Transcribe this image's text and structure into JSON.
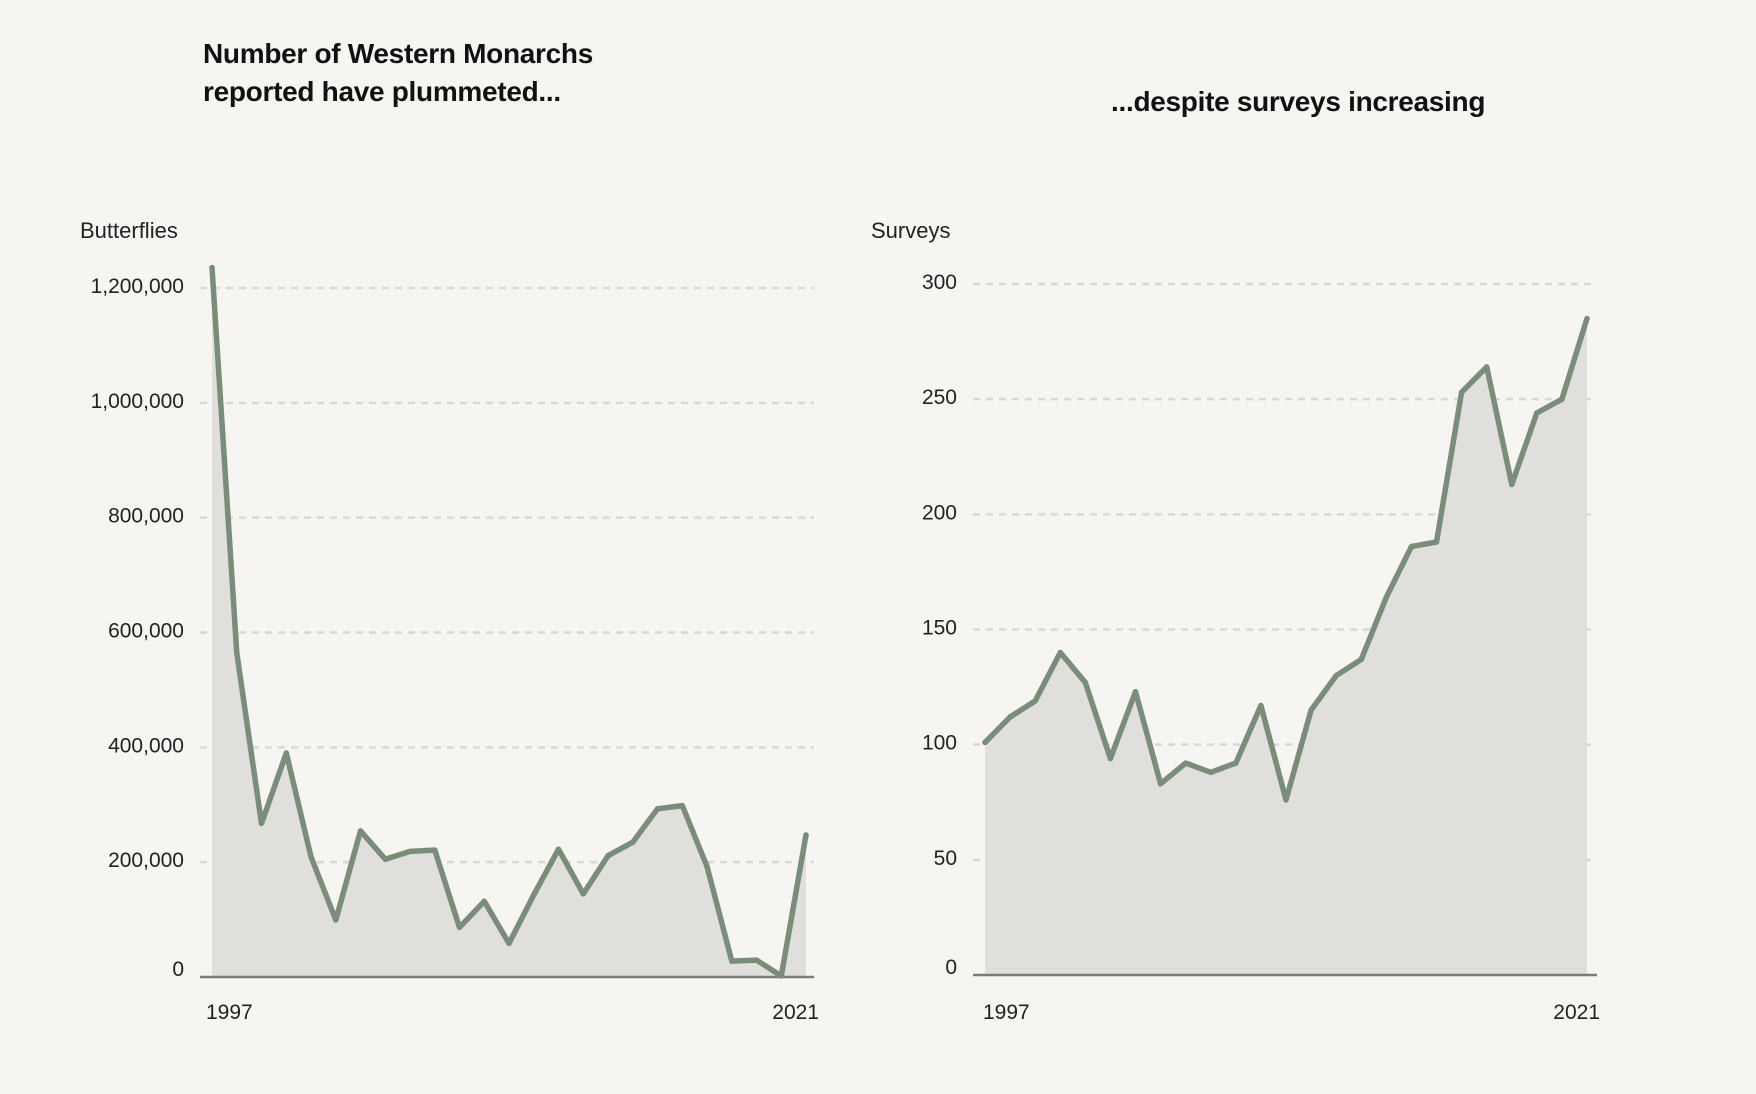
{
  "chart_data": [
    {
      "type": "area",
      "title": "Number of Western Monarchs reported have plummeted...",
      "title_lines": [
        "Number of Western Monarchs",
        "reported have plummeted..."
      ],
      "xlabel": "",
      "ylabel": "Butterflies",
      "x": [
        1997,
        1998,
        1999,
        2000,
        2001,
        2002,
        2003,
        2004,
        2005,
        2006,
        2007,
        2008,
        2009,
        2010,
        2011,
        2012,
        2013,
        2014,
        2015,
        2016,
        2017,
        2018,
        2019,
        2020,
        2021
      ],
      "x_tick_labels": [
        "1997",
        "2021"
      ],
      "series": [
        {
          "name": "Butterflies",
          "color": "#7a8c7a",
          "fill": "#e0dfdb",
          "values": [
            1235490,
            564349,
            267574,
            390057,
            209570,
            99353,
            254378,
            205085,
            218679,
            221058,
            86437,
            131889,
            58468,
            143204,
            222525,
            144812,
            211275,
            234731,
            292888,
            298464,
            192624,
            27721,
            29418,
            1914,
            247237
          ]
        }
      ],
      "ylim": [
        0,
        1200000
      ],
      "y_ticks": [
        0,
        200000,
        400000,
        600000,
        800000,
        1000000,
        1200000
      ],
      "y_tick_labels": [
        "0",
        "200,000",
        "400,000",
        "600,000",
        "800,000",
        "1,000,000",
        "1,200,000"
      ],
      "grid": true
    },
    {
      "type": "area",
      "title": "...despite surveys increasing",
      "title_lines": [
        "...despite surveys increasing"
      ],
      "xlabel": "",
      "ylabel": "Surveys",
      "x": [
        1997,
        1998,
        1999,
        2000,
        2001,
        2002,
        2003,
        2004,
        2005,
        2006,
        2007,
        2008,
        2009,
        2010,
        2011,
        2012,
        2013,
        2014,
        2015,
        2016,
        2017,
        2018,
        2019,
        2020,
        2021
      ],
      "x_tick_labels": [
        "1997",
        "2021"
      ],
      "series": [
        {
          "name": "Surveys",
          "color": "#7a8c7a",
          "fill": "#e0dfdb",
          "values": [
            101,
            112,
            119,
            140,
            127,
            94,
            123,
            83,
            92,
            88,
            92,
            117,
            76,
            115,
            130,
            137,
            164,
            186,
            188,
            253,
            264,
            213,
            244,
            250,
            285
          ]
        }
      ],
      "ylim": [
        0,
        300
      ],
      "y_ticks": [
        0,
        50,
        100,
        150,
        200,
        250,
        300
      ],
      "y_tick_labels": [
        "0",
        "50",
        "100",
        "150",
        "200",
        "250",
        "300"
      ],
      "grid": true
    }
  ]
}
